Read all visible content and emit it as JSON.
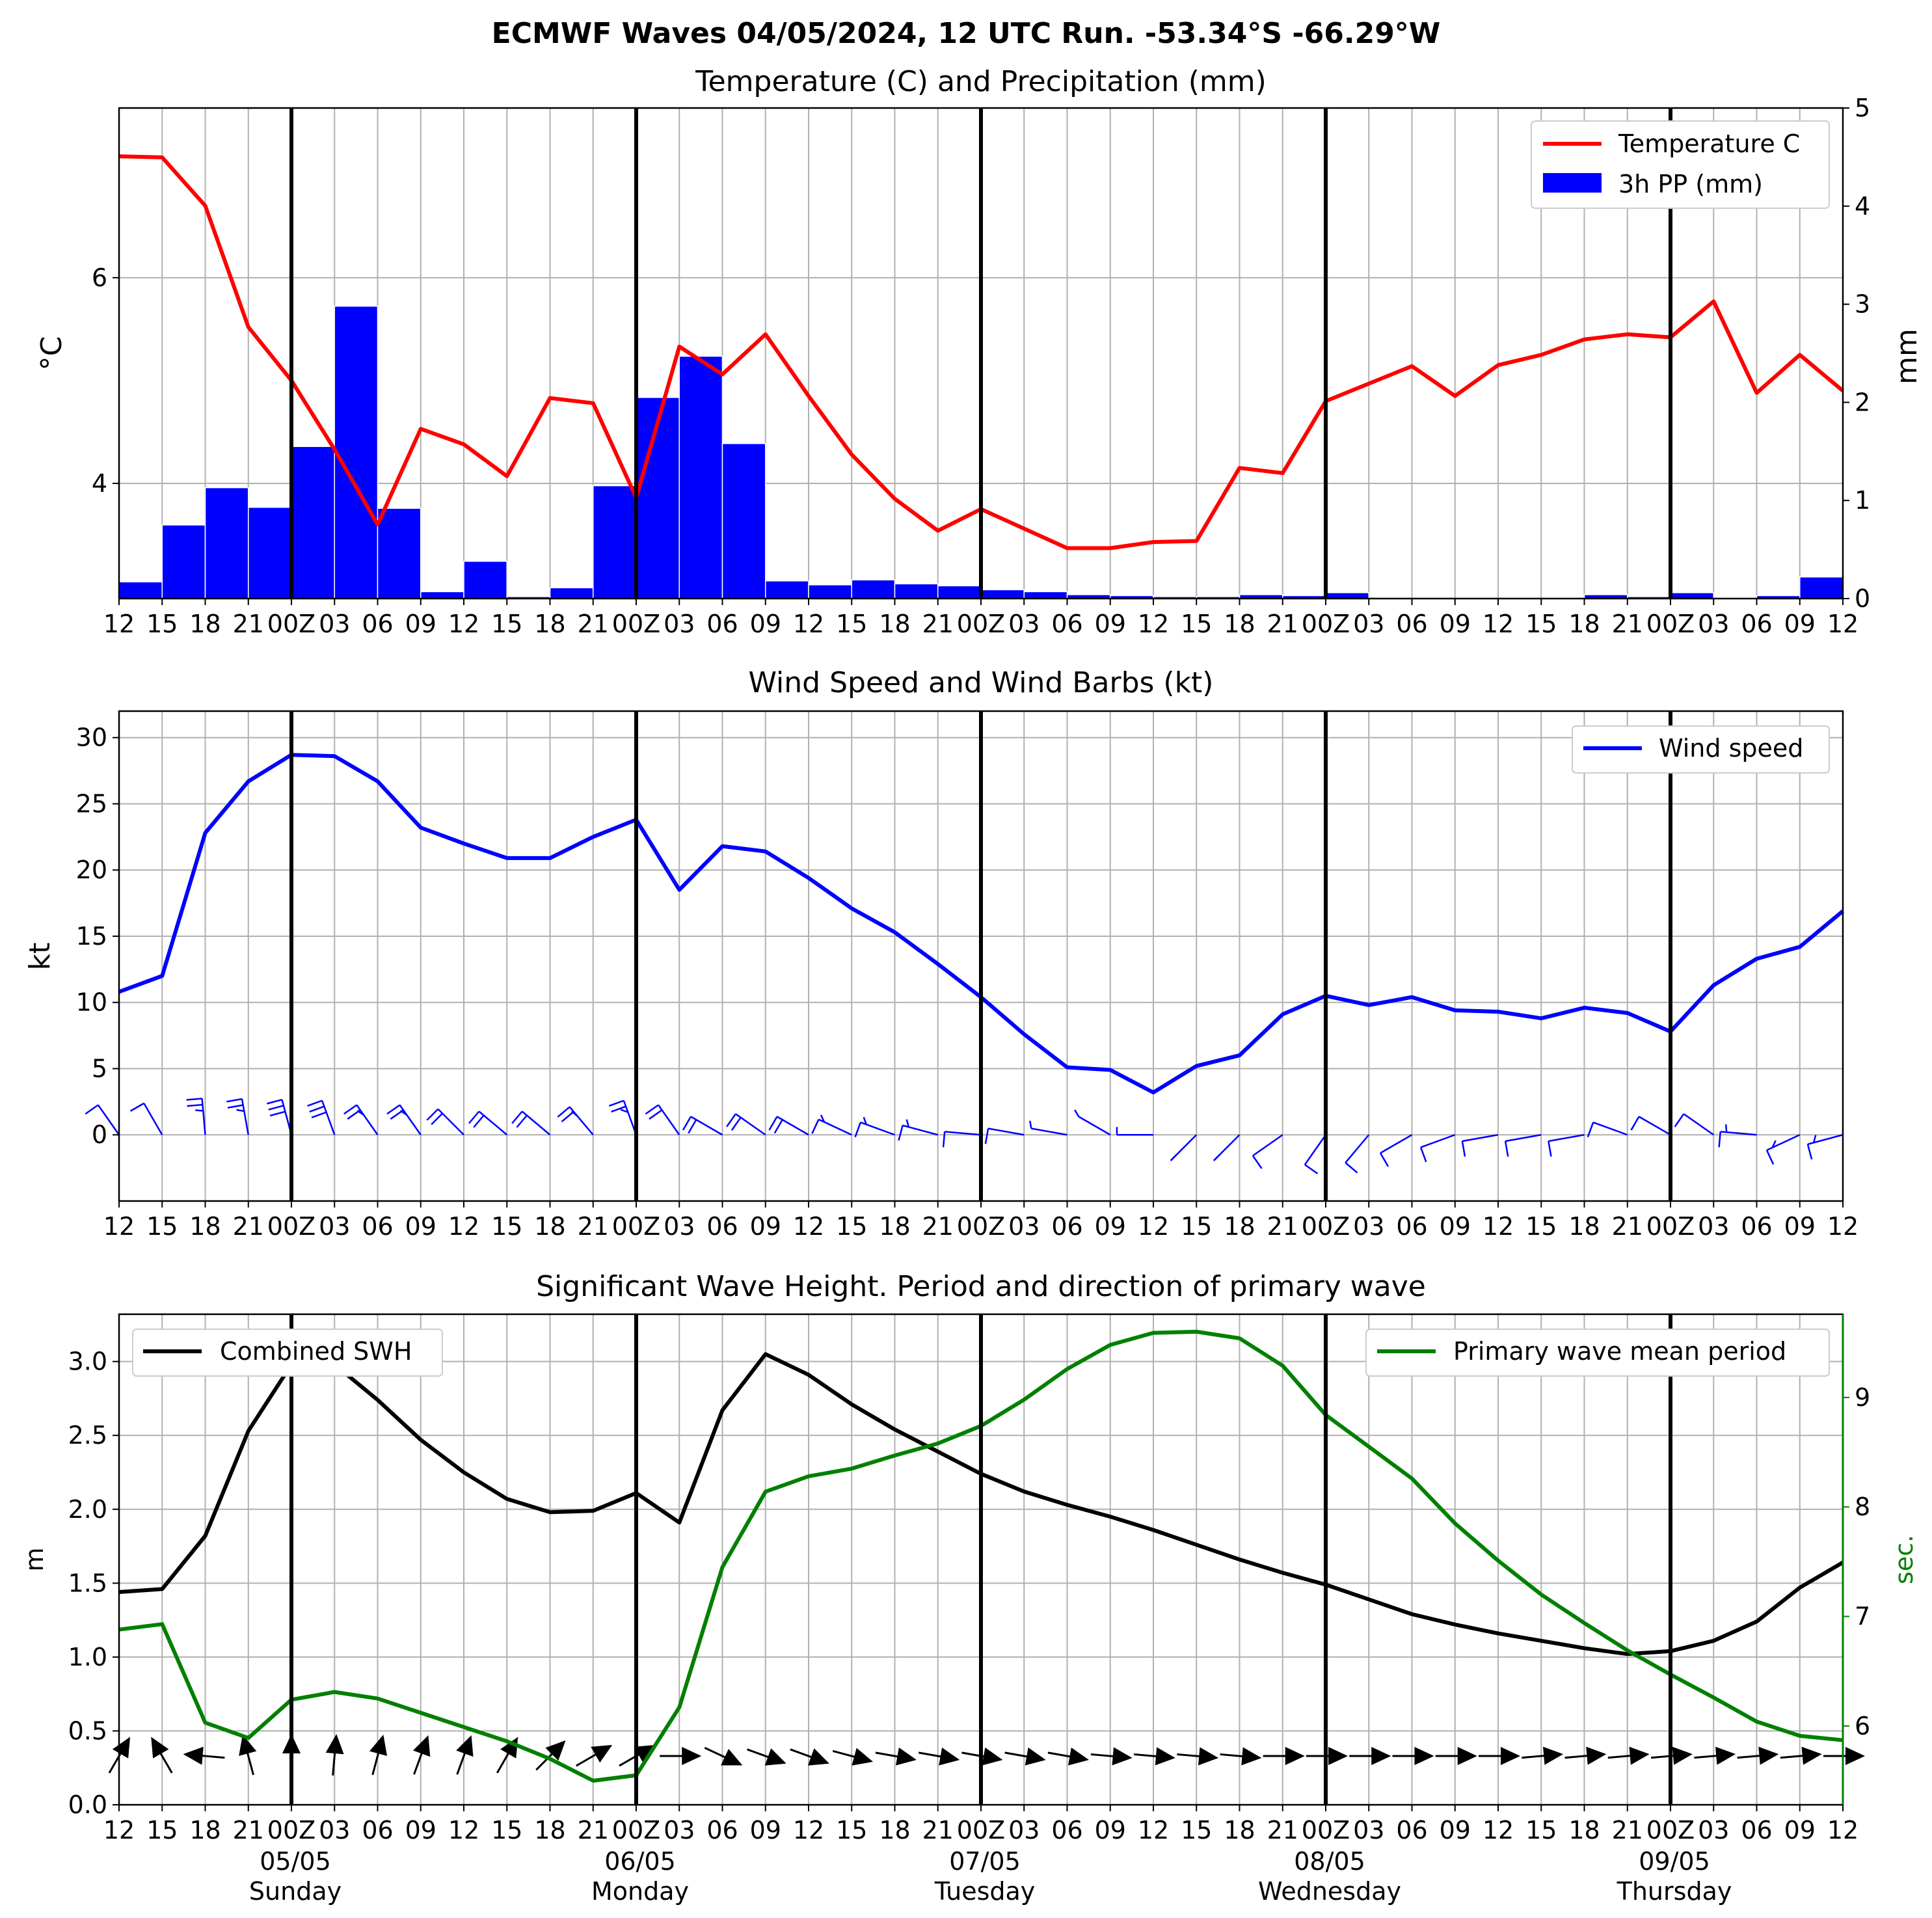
{
  "title": "ECMWF Waves 04/05/2024, 12 UTC Run. -53.34°S -66.29°W",
  "time_tick_labels": [
    "12",
    "15",
    "18",
    "21",
    "00Z",
    "03",
    "06",
    "09",
    "12",
    "15",
    "18",
    "21",
    "00Z",
    "03",
    "06",
    "09",
    "12",
    "15",
    "18",
    "21",
    "00Z",
    "03",
    "06",
    "09",
    "12",
    "15",
    "18",
    "21",
    "00Z",
    "03",
    "06",
    "09",
    "12",
    "15",
    "18",
    "21",
    "00Z",
    "03",
    "06",
    "09",
    "12"
  ],
  "day_labels": [
    {
      "date": "05/05",
      "day": "Sunday"
    },
    {
      "date": "06/05",
      "day": "Monday"
    },
    {
      "date": "07/05",
      "day": "Tuesday"
    },
    {
      "date": "08/05",
      "day": "Wednesday"
    },
    {
      "date": "09/05",
      "day": "Thursday"
    }
  ],
  "colors": {
    "temperature": "#ff0000",
    "precip": "#0000ff",
    "wind": "#0000ff",
    "swh": "#000000",
    "period": "#008000",
    "grid": "#b0b0b0"
  },
  "chart_data": [
    {
      "type": "line",
      "title": "Temperature (C) and Precipitation (mm)",
      "ylabel": "°C",
      "y2label": "mm",
      "ylim": [
        2.88,
        7.65
      ],
      "y2lim": [
        0,
        5
      ],
      "yticks": [
        4,
        6
      ],
      "y2ticks": [
        0,
        1,
        2,
        3,
        4,
        5
      ],
      "legend_position": "top-right",
      "grid": true,
      "series": [
        {
          "name": "Temperature C",
          "kind": "line",
          "axis": "left",
          "values": [
            7.18,
            7.17,
            6.7,
            5.52,
            5.0,
            4.33,
            3.6,
            4.53,
            4.38,
            4.07,
            4.83,
            4.78,
            3.86,
            5.33,
            5.06,
            5.45,
            4.85,
            4.28,
            3.85,
            3.54,
            3.75,
            3.56,
            3.37,
            3.37,
            3.43,
            3.44,
            4.15,
            4.1,
            4.8,
            4.97,
            5.14,
            4.85,
            5.15,
            5.25,
            5.4,
            5.45,
            5.42,
            5.77,
            4.88,
            5.25,
            4.9
          ]
        },
        {
          "name": "3h PP (mm)",
          "kind": "bar",
          "axis": "right",
          "values": [
            0.17,
            0.75,
            1.13,
            0.93,
            1.55,
            2.98,
            0.92,
            0.07,
            0.38,
            0.02,
            0.11,
            1.15,
            2.05,
            2.47,
            1.58,
            0.18,
            0.14,
            0.19,
            0.15,
            0.13,
            0.09,
            0.07,
            0.04,
            0.03,
            0.02,
            0.02,
            0.04,
            0.03,
            0.06,
            0.0,
            0.0,
            0.0,
            0.0,
            0.0,
            0.04,
            0.02,
            0.06,
            0.0,
            0.03,
            0.22,
            0.0
          ]
        }
      ]
    },
    {
      "type": "line",
      "title": "Wind Speed and Wind Barbs (kt)",
      "ylabel": "kt",
      "ylim": [
        -5,
        32
      ],
      "yticks": [
        0,
        5,
        10,
        15,
        20,
        25,
        30
      ],
      "legend_position": "top-right",
      "grid": true,
      "series": [
        {
          "name": "Wind speed",
          "kind": "line",
          "values": [
            10.8,
            12.0,
            22.8,
            26.7,
            28.7,
            28.6,
            26.7,
            23.2,
            22.0,
            20.9,
            20.9,
            22.5,
            23.8,
            18.5,
            21.8,
            21.4,
            19.4,
            17.1,
            15.3,
            12.9,
            10.4,
            7.6,
            5.1,
            4.9,
            3.2,
            5.2,
            6.0,
            9.1,
            10.5,
            9.8,
            10.4,
            9.4,
            9.3,
            8.8,
            9.6,
            9.2,
            7.8,
            11.3,
            13.3,
            14.2,
            16.9
          ]
        },
        {
          "name": "wind barb direction (deg, from)",
          "values": [
            325,
            330,
            355,
            350,
            345,
            340,
            325,
            325,
            315,
            310,
            310,
            320,
            340,
            325,
            300,
            305,
            300,
            295,
            290,
            285,
            275,
            280,
            280,
            300,
            270,
            225,
            225,
            235,
            215,
            220,
            240,
            250,
            260,
            260,
            260,
            290,
            300,
            305,
            275,
            245,
            255
          ]
        }
      ]
    },
    {
      "type": "line",
      "title": "Significant Wave Height. Period and direction of primary wave",
      "ylabel": "m",
      "y2label": "sec.",
      "ylim": [
        0,
        3.32
      ],
      "y2lim": [
        5.28,
        9.76
      ],
      "yticks": [
        0.0,
        0.5,
        1.0,
        1.5,
        2.0,
        2.5,
        3.0
      ],
      "y2ticks": [
        6,
        7,
        8,
        9
      ],
      "legend_position": "top",
      "grid": true,
      "series": [
        {
          "name": "Combined SWH",
          "kind": "line",
          "axis": "left",
          "values": [
            1.44,
            1.46,
            1.82,
            2.53,
            2.98,
            2.98,
            2.74,
            2.47,
            2.25,
            2.07,
            1.98,
            1.99,
            2.11,
            1.91,
            2.67,
            3.05,
            2.91,
            2.71,
            2.54,
            2.39,
            2.24,
            2.12,
            2.03,
            1.95,
            1.86,
            1.76,
            1.66,
            1.57,
            1.49,
            1.39,
            1.29,
            1.22,
            1.16,
            1.11,
            1.06,
            1.02,
            1.04,
            1.11,
            1.24,
            1.47,
            1.64
          ]
        },
        {
          "name": "Primary wave mean period",
          "kind": "line",
          "axis": "right",
          "values": [
            6.88,
            6.93,
            6.03,
            5.89,
            6.24,
            6.31,
            6.25,
            6.12,
            5.99,
            5.86,
            5.7,
            5.5,
            5.55,
            6.17,
            7.45,
            8.14,
            8.28,
            8.35,
            8.47,
            8.58,
            8.74,
            8.98,
            9.26,
            9.48,
            9.59,
            9.6,
            9.54,
            9.29,
            8.84,
            8.55,
            8.26,
            7.85,
            7.51,
            7.2,
            6.94,
            6.69,
            6.47,
            6.26,
            6.04,
            5.91,
            5.87
          ]
        },
        {
          "name": "primary wave direction arrows (deg, toward)",
          "values": [
            30,
            330,
            275,
            345,
            0,
            5,
            15,
            20,
            20,
            30,
            45,
            60,
            60,
            90,
            115,
            110,
            110,
            105,
            100,
            100,
            100,
            100,
            100,
            95,
            95,
            95,
            95,
            90,
            90,
            90,
            90,
            90,
            90,
            85,
            85,
            85,
            85,
            85,
            85,
            85,
            90
          ]
        }
      ]
    }
  ]
}
